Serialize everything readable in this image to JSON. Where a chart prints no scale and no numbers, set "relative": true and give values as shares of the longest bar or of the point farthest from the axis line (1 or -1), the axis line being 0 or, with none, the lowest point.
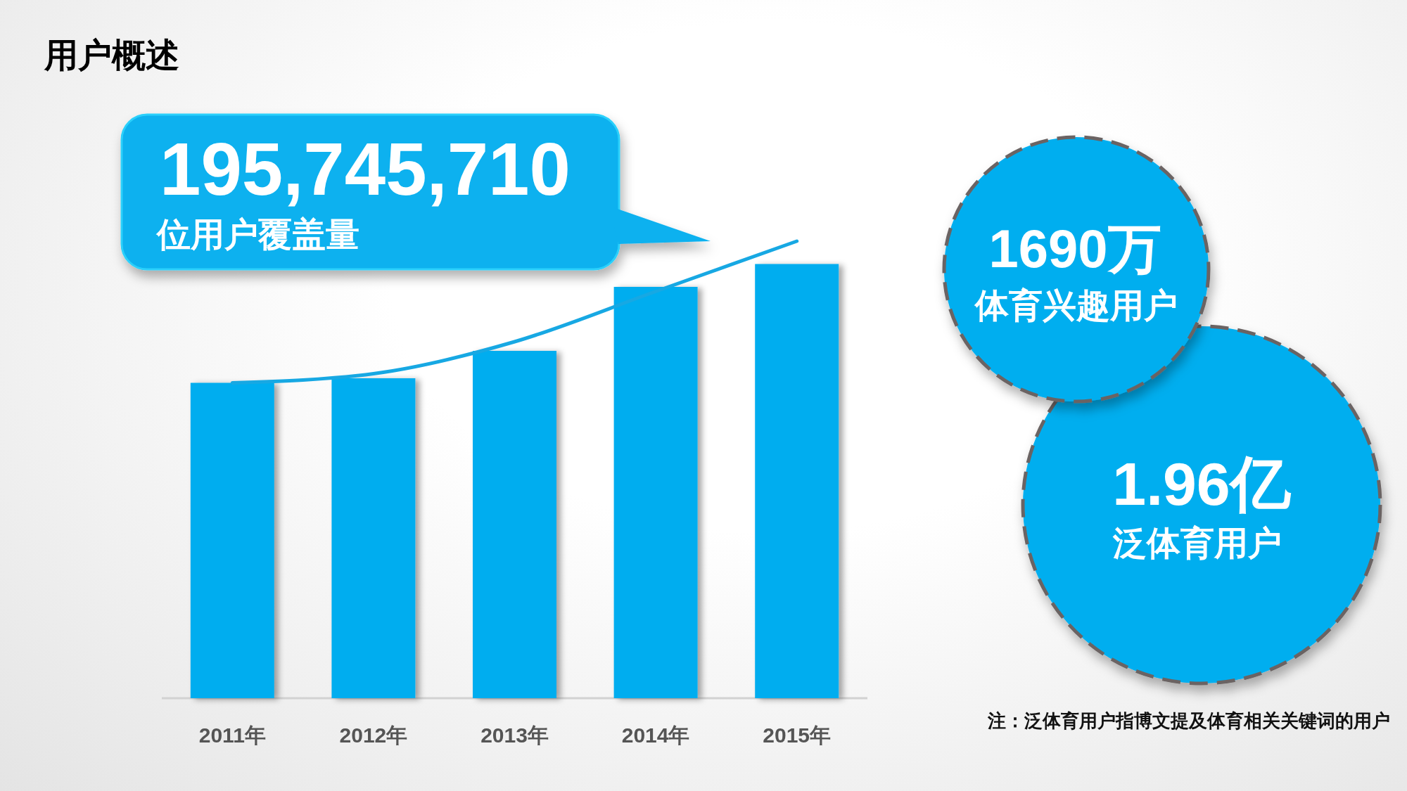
{
  "chart_data": {
    "type": "bar",
    "title": "用户概述",
    "categories": [
      "2011年",
      "2012年",
      "2013年",
      "2014年",
      "2015年"
    ],
    "relative": true,
    "series": [
      {
        "color": "#00adef",
        "values": [
          0.69,
          0.7,
          0.76,
          0.9,
          0.95
        ]
      },
      {
        "type": "line",
        "color": "#17a8e3",
        "values": [
          0.69,
          0.71,
          0.78,
          0.89,
          1
        ]
      }
    ],
    "annotations": [
      "195,745,710",
      "位用户覆盖量",
      "1690万",
      "体育兴趣用户",
      "1.96亿",
      "泛体育用户",
      "注：泛体育用户指博文提及体育相关关键词的用户"
    ]
  }
}
